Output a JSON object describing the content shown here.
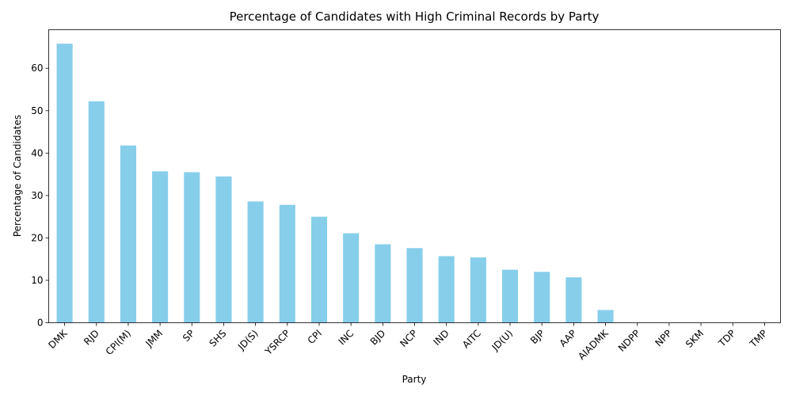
{
  "chart_data": {
    "type": "bar",
    "title": "Percentage of Candidates with High Criminal Records by Party",
    "xlabel": "Party",
    "ylabel": "Percentage of Candidates",
    "categories": [
      "DMK",
      "RJD",
      "CPI(M)",
      "JMM",
      "SP",
      "SHS",
      "JD(S)",
      "YSRCP",
      "CPI",
      "INC",
      "BJD",
      "NCP",
      "IND",
      "AITC",
      "JD(U)",
      "BJP",
      "AAP",
      "AIADMK",
      "NDPP",
      "NPP",
      "SKM",
      "TDP",
      "TMP"
    ],
    "values": [
      65.8,
      52.2,
      41.8,
      35.7,
      35.5,
      34.5,
      28.6,
      27.8,
      25.0,
      21.1,
      18.5,
      17.6,
      15.7,
      15.4,
      12.5,
      12.0,
      10.7,
      3.0,
      0,
      0,
      0,
      0,
      0
    ],
    "ylim": [
      0,
      69.1
    ],
    "yticks": [
      0,
      10,
      20,
      30,
      40,
      50,
      60
    ],
    "bar_color": "#87ceeb",
    "grid": false,
    "legend": "none"
  }
}
